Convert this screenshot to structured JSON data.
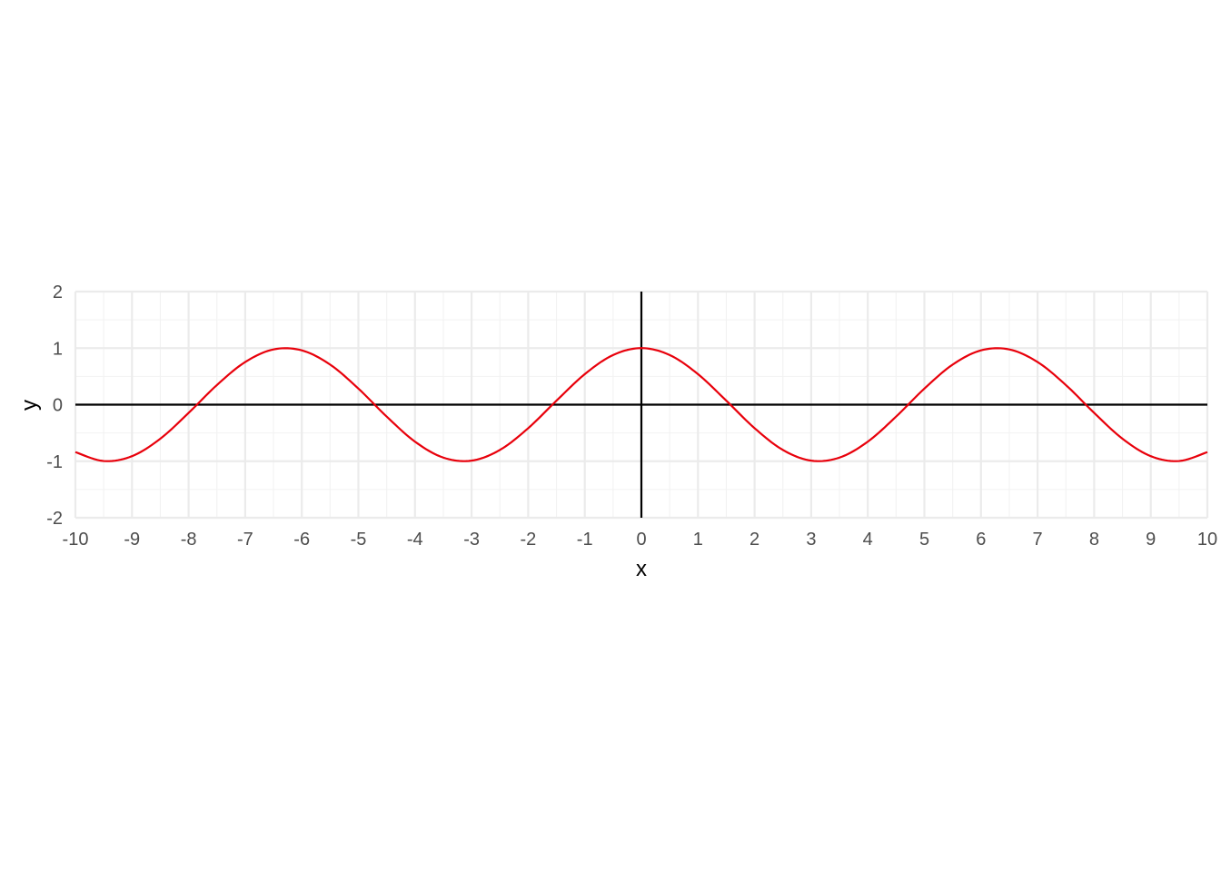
{
  "chart_data": {
    "type": "line",
    "title": "",
    "xlabel": "x",
    "ylabel": "y",
    "xlim": [
      -10,
      10
    ],
    "ylim": [
      -2,
      2
    ],
    "x_ticks": [
      -10,
      -9,
      -8,
      -7,
      -6,
      -5,
      -4,
      -3,
      -2,
      -1,
      0,
      1,
      2,
      3,
      4,
      5,
      6,
      7,
      8,
      9,
      10
    ],
    "y_ticks": [
      -2,
      -1,
      0,
      1,
      2
    ],
    "x_tick_labels": [
      "-10",
      "-9",
      "-8",
      "-7",
      "-6",
      "-5",
      "-4",
      "-3",
      "-2",
      "-1",
      "0",
      "1",
      "2",
      "3",
      "4",
      "5",
      "6",
      "7",
      "8",
      "9",
      "10"
    ],
    "y_tick_labels": [
      "-2",
      "-1",
      "0",
      "1",
      "2"
    ],
    "grid": true,
    "legend": "none",
    "series": [
      {
        "color": "#e8000b",
        "x": [
          -10,
          -9.5,
          -9,
          -8.5,
          -8,
          -7.5,
          -7,
          -6.5,
          -6,
          -5.5,
          -5,
          -4.5,
          -4,
          -3.5,
          -3,
          -2.5,
          -2,
          -1.5,
          -1,
          -0.5,
          0,
          0.5,
          1,
          1.5,
          2,
          2.5,
          3,
          3.5,
          4,
          4.5,
          5,
          5.5,
          6,
          6.5,
          7,
          7.5,
          8,
          8.5,
          9,
          9.5,
          10
        ],
        "y": [
          -0.839,
          -0.997,
          -0.911,
          -0.602,
          -0.146,
          0.347,
          0.754,
          0.977,
          0.96,
          0.709,
          0.284,
          -0.211,
          -0.654,
          -0.936,
          -0.99,
          -0.801,
          -0.416,
          0.071,
          0.54,
          0.878,
          1.0,
          0.878,
          0.54,
          0.071,
          -0.416,
          -0.801,
          -0.99,
          -0.936,
          -0.654,
          -0.211,
          0.284,
          0.709,
          0.96,
          0.977,
          0.754,
          0.347,
          -0.146,
          -0.602,
          -0.911,
          -0.997,
          -0.839
        ]
      }
    ],
    "colors": {
      "grid_major": "#ebebeb",
      "grid_minor": "#f2f2f2",
      "axis_line": "#000000",
      "tick_text": "#4d4d4d"
    }
  }
}
